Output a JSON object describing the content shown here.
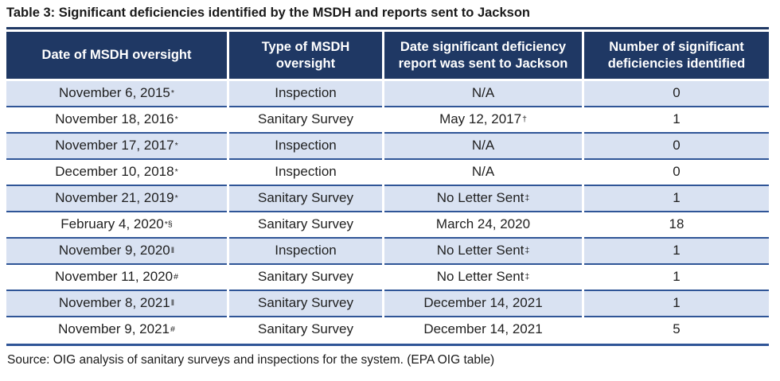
{
  "title": "Table 3: Significant deficiencies identified by the MSDH and reports sent to Jackson",
  "source": "Source: OIG analysis of sanitary surveys and inspections for the system. (EPA OIG table)",
  "colors": {
    "header_bg": "#1F3864",
    "header_text": "#FFFFFF",
    "row_alt_bg": "#D9E2F2",
    "row_bg": "#FFFFFF",
    "row_separator": "#2F5597",
    "outer_top_border": "#1F3864"
  },
  "columns": [
    "Date of MSDH oversight",
    "Type of MSDH oversight",
    "Date significant deficiency report was sent to Jackson",
    "Number of significant deficiencies identified"
  ],
  "rows": [
    {
      "date": "November 6, 2015",
      "date_sup": "*",
      "type": "Inspection",
      "report": "N/A",
      "report_sup": "",
      "count": "0"
    },
    {
      "date": "November 18, 2016",
      "date_sup": "*",
      "type": "Sanitary Survey",
      "report": "May 12, 2017",
      "report_sup": "†",
      "count": "1"
    },
    {
      "date": "November 17, 2017",
      "date_sup": "*",
      "type": "Inspection",
      "report": "N/A",
      "report_sup": "",
      "count": "0"
    },
    {
      "date": "December 10, 2018",
      "date_sup": "*",
      "type": "Inspection",
      "report": "N/A",
      "report_sup": "",
      "count": "0"
    },
    {
      "date": "November 21, 2019",
      "date_sup": "*",
      "type": "Sanitary Survey",
      "report": "No Letter Sent",
      "report_sup": "‡",
      "count": "1"
    },
    {
      "date": "February 4, 2020",
      "date_sup": "*§",
      "type": "Sanitary Survey",
      "report": "March 24, 2020",
      "report_sup": "",
      "count": "18"
    },
    {
      "date": "November 9, 2020",
      "date_sup": "‖",
      "type": "Inspection",
      "report": "No Letter Sent",
      "report_sup": "‡",
      "count": "1"
    },
    {
      "date": "November 11, 2020",
      "date_sup": "#",
      "type": "Sanitary Survey",
      "report": "No Letter Sent",
      "report_sup": "‡",
      "count": "1"
    },
    {
      "date": "November 8, 2021",
      "date_sup": "‖",
      "type": "Sanitary Survey",
      "report": "December 14, 2021",
      "report_sup": "",
      "count": "1"
    },
    {
      "date": "November 9, 2021",
      "date_sup": "#",
      "type": "Sanitary Survey",
      "report": "December 14, 2021",
      "report_sup": "",
      "count": "5"
    }
  ]
}
